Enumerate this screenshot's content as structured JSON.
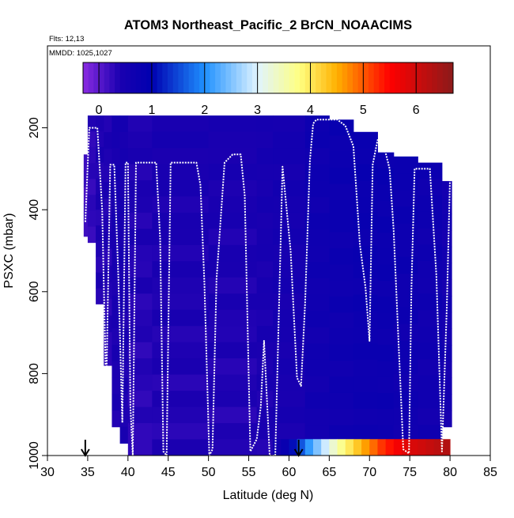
{
  "chart_data": {
    "type": "heatmap",
    "title": "ATOM3 Northeast_Pacific_2 BrCN_NOAACIMS",
    "subtitle_lines": [
      "Flts: 12,13",
      "MMDD: 1025,1027"
    ],
    "xlabel": "Latitude (deg N)",
    "ylabel": "PSXC (mbar)",
    "xlim": [
      30,
      85
    ],
    "ylim": [
      1000,
      0
    ],
    "x_ticks": [
      30,
      35,
      40,
      45,
      50,
      55,
      60,
      65,
      70,
      75,
      80,
      85
    ],
    "y_ticks": [
      200,
      400,
      600,
      800,
      1000
    ],
    "colorbar": {
      "range": [
        -0.3,
        6.7
      ],
      "ticks": [
        0,
        1,
        2,
        3,
        4,
        5,
        6
      ],
      "stops": [
        {
          "v": -0.3,
          "c": "#8a2be2"
        },
        {
          "v": 0.4,
          "c": "#1a00b0"
        },
        {
          "v": 1.0,
          "c": "#0000b0"
        },
        {
          "v": 2.0,
          "c": "#1e90ff"
        },
        {
          "v": 3.0,
          "c": "#e0f4ff"
        },
        {
          "v": 3.8,
          "c": "#ffff80"
        },
        {
          "v": 4.5,
          "c": "#ffb000"
        },
        {
          "v": 5.5,
          "c": "#ff0000"
        },
        {
          "v": 6.7,
          "c": "#8b1a1a"
        }
      ]
    },
    "columns": [
      {
        "x": [
          34.5,
          35.0
        ],
        "p": [
          265,
          465
        ],
        "v": 0.2
      },
      {
        "x": [
          35.0,
          36.0
        ],
        "p": [
          170,
          480
        ],
        "v": 0.3
      },
      {
        "x": [
          36.0,
          37.0
        ],
        "p": [
          170,
          630
        ],
        "v": 0.4
      },
      {
        "x": [
          37.0,
          38.0
        ],
        "p": [
          170,
          780
        ],
        "v": 0.4
      },
      {
        "x": [
          38.0,
          39.0
        ],
        "p": [
          170,
          930
        ],
        "v": 0.5
      },
      {
        "x": [
          39.0,
          40.0
        ],
        "p": [
          170,
          970
        ],
        "v": 0.5
      },
      {
        "x": [
          40.0,
          43.0
        ],
        "p": [
          170,
          1000
        ],
        "v": 0.4
      },
      {
        "x": [
          43.0,
          50.0
        ],
        "p": [
          170,
          1000
        ],
        "v": 0.45
      },
      {
        "x": [
          50.0,
          56.0
        ],
        "p": [
          170,
          1000
        ],
        "v": 0.45
      },
      {
        "x": [
          56.0,
          58.0
        ],
        "p": [
          170,
          1000
        ],
        "v": 0.5
      },
      {
        "x": [
          58.0,
          62.0
        ],
        "p": [
          170,
          1000
        ],
        "v": 0.55
      },
      {
        "x": [
          62.0,
          65.0
        ],
        "p": [
          170,
          965
        ],
        "v": 0.7
      },
      {
        "x": [
          65.0,
          68.0
        ],
        "p": [
          180,
          965
        ],
        "v": 0.75
      },
      {
        "x": [
          68.0,
          71.0
        ],
        "p": [
          210,
          965
        ],
        "v": 0.8
      },
      {
        "x": [
          71.0,
          73.0
        ],
        "p": [
          260,
          965
        ],
        "v": 0.8
      },
      {
        "x": [
          73.0,
          76.0
        ],
        "p": [
          270,
          965
        ],
        "v": 0.75
      },
      {
        "x": [
          76.0,
          79.0
        ],
        "p": [
          285,
          965
        ],
        "v": 0.7
      },
      {
        "x": [
          79.0,
          80.2
        ],
        "p": [
          330,
          930
        ],
        "v": 0.6
      }
    ],
    "surface_strip": {
      "p": [
        960,
        1000
      ],
      "x": [
        58.0,
        59.0,
        60.0,
        61.0,
        62.0,
        63.0,
        64.0,
        65.0,
        66.0,
        67.0,
        68.0,
        69.0,
        70.0,
        71.0,
        72.0,
        73.0,
        74.0,
        75.0,
        76.0,
        77.0,
        78.0,
        79.0
      ],
      "v": [
        0.6,
        0.8,
        1.1,
        1.6,
        2.1,
        2.5,
        2.9,
        3.3,
        3.7,
        4.0,
        4.3,
        4.6,
        4.9,
        5.2,
        5.4,
        5.6,
        5.8,
        5.9,
        6.0,
        6.1,
        6.2,
        6.3
      ]
    },
    "flight_track": {
      "lat": [
        34.7,
        35.2,
        36.2,
        36.8,
        37.3,
        37.8,
        38.3,
        38.8,
        39.3,
        39.7,
        40.0,
        40.3,
        40.6,
        41.0,
        41.5,
        43.5,
        44.0,
        44.4,
        44.8,
        45.3,
        47.0,
        48.5,
        49.0,
        49.5,
        50.1,
        50.5,
        51.0,
        52.0,
        53.0,
        54.0,
        54.5,
        55.2,
        56.0,
        56.5,
        56.9,
        57.3,
        57.6,
        58.3,
        59.2,
        60.2,
        61.0,
        61.5,
        62.0,
        62.6,
        63.0,
        63.4,
        63.8,
        64.5,
        66.0,
        67.0,
        68.0,
        68.8,
        69.5,
        70.0,
        70.4,
        71.0,
        71.6,
        72.5,
        73.0,
        73.6,
        74.2,
        74.9,
        75.2,
        75.6,
        76.3,
        77.5,
        78.3,
        79.0,
        79.6,
        80.0
      ],
      "psxc": [
        430,
        200,
        200,
        400,
        850,
        290,
        290,
        560,
        920,
        285,
        285,
        880,
        1000,
        285,
        285,
        285,
        470,
        990,
        1000,
        285,
        285,
        285,
        340,
        580,
        1000,
        985,
        570,
        285,
        265,
        265,
        365,
        990,
        960,
        880,
        720,
        880,
        1000,
        1000,
        295,
        500,
        810,
        830,
        630,
        280,
        190,
        180,
        180,
        180,
        180,
        195,
        245,
        485,
        590,
        720,
        290,
        230,
        230,
        300,
        450,
        720,
        985,
        995,
        600,
        300,
        300,
        300,
        560,
        990,
        640,
        320
      ]
    },
    "markers": [
      {
        "lat": 34.7,
        "psxc": 1000
      },
      {
        "lat": 61.2,
        "psxc": 1000
      }
    ]
  }
}
